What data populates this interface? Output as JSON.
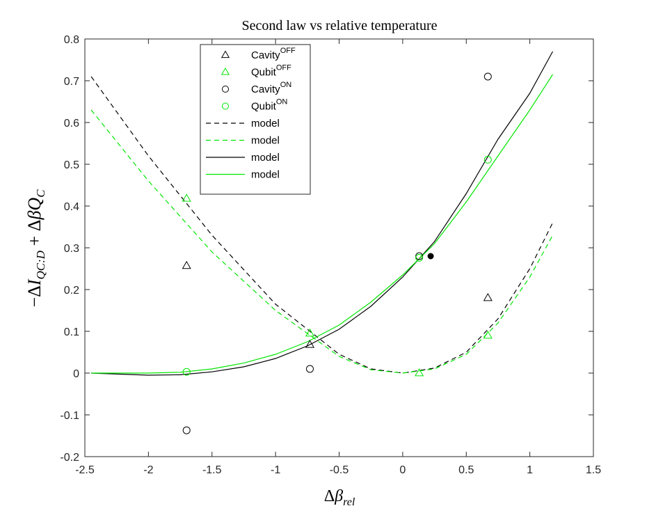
{
  "chart_data": {
    "type": "scatter",
    "title": "Second law vs relative temperature",
    "xlabel": "Δβ_rel",
    "ylabel": "−ΔI_{QC:D} + ΔβQ_C",
    "xlim": [
      -2.5,
      1.5
    ],
    "ylim": [
      -0.2,
      0.8
    ],
    "xticks": [
      "-2.5",
      "-2",
      "-1.5",
      "-1",
      "-0.5",
      "0",
      "0.5",
      "1",
      "1.5"
    ],
    "yticks": [
      "-0.2",
      "-0.1",
      "0",
      "0.1",
      "0.2",
      "0.3",
      "0.4",
      "0.5",
      "0.6",
      "0.7",
      "0.8"
    ],
    "grid": false,
    "legend_position": "top-left",
    "series": [
      {
        "name": "Cavity",
        "sup": "OFF",
        "kind": "points",
        "marker": "triangle",
        "color": "#000000",
        "x": [
          -1.7,
          -0.73,
          0.67
        ],
        "y": [
          0.257,
          0.068,
          0.18
        ]
      },
      {
        "name": "Qubit",
        "sup": "OFF",
        "kind": "points",
        "marker": "triangle",
        "color": "#00e600",
        "x": [
          -1.7,
          -0.73,
          0.13,
          0.67
        ],
        "y": [
          0.418,
          0.095,
          0.0,
          0.09
        ]
      },
      {
        "name": "Cavity",
        "sup": "ON",
        "kind": "points",
        "marker": "circle",
        "color": "#000000",
        "x": [
          -1.7,
          -0.73,
          0.13,
          0.67
        ],
        "y": [
          -0.137,
          0.01,
          0.28,
          0.71
        ]
      },
      {
        "name": "Qubit",
        "sup": "ON",
        "kind": "points",
        "marker": "circle",
        "color": "#00e600",
        "x": [
          -1.7,
          0.13,
          0.67
        ],
        "y": [
          0.003,
          0.276,
          0.511
        ]
      },
      {
        "name": "model",
        "kind": "line",
        "dash": "7,5",
        "color": "#000000",
        "x": [
          -2.45,
          -2.0,
          -1.5,
          -1.0,
          -0.5,
          -0.25,
          0.0,
          0.25,
          0.5,
          0.75,
          1.0,
          1.18
        ],
        "y": [
          0.71,
          0.52,
          0.33,
          0.165,
          0.045,
          0.01,
          0.0,
          0.012,
          0.05,
          0.13,
          0.25,
          0.36
        ]
      },
      {
        "name": "model",
        "kind": "line",
        "dash": "7,5",
        "color": "#00e600",
        "x": [
          -2.45,
          -2.0,
          -1.5,
          -1.0,
          -0.5,
          -0.25,
          0.0,
          0.25,
          0.5,
          0.75,
          1.0,
          1.18
        ],
        "y": [
          0.63,
          0.46,
          0.29,
          0.15,
          0.04,
          0.008,
          0.0,
          0.01,
          0.045,
          0.12,
          0.23,
          0.33
        ]
      },
      {
        "name": "model",
        "kind": "line",
        "dash": "",
        "color": "#000000",
        "x": [
          -2.45,
          -2.0,
          -1.75,
          -1.5,
          -1.25,
          -1.0,
          -0.75,
          -0.5,
          -0.25,
          0.0,
          0.25,
          0.5,
          0.75,
          1.0,
          1.18
        ],
        "y": [
          0.0,
          -0.005,
          -0.004,
          0.003,
          0.015,
          0.035,
          0.065,
          0.105,
          0.16,
          0.23,
          0.315,
          0.43,
          0.56,
          0.67,
          0.77
        ]
      },
      {
        "name": "model",
        "kind": "line",
        "dash": "",
        "color": "#00e600",
        "x": [
          -2.45,
          -2.0,
          -1.75,
          -1.5,
          -1.25,
          -1.0,
          -0.75,
          -0.5,
          -0.25,
          0.0,
          0.25,
          0.5,
          0.75,
          1.0,
          1.18
        ],
        "y": [
          0.0,
          0.0,
          0.002,
          0.01,
          0.024,
          0.045,
          0.075,
          0.115,
          0.17,
          0.235,
          0.31,
          0.41,
          0.52,
          0.63,
          0.715
        ]
      }
    ],
    "annotations": [
      {
        "kind": "filled-dot",
        "color": "#000000",
        "x": 0.22,
        "y": 0.28
      }
    ]
  }
}
